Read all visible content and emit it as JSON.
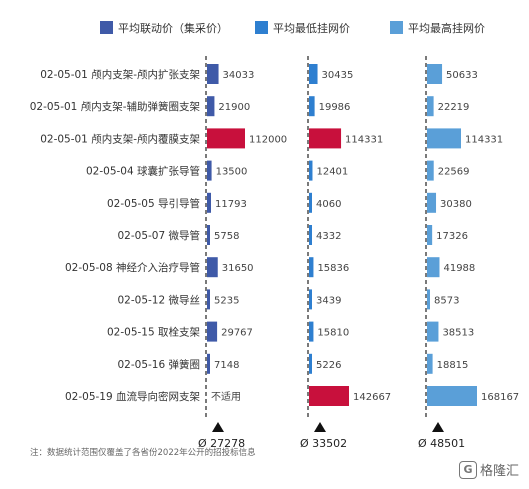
{
  "chart_data": {
    "type": "bar",
    "orientation": "horizontal",
    "legend": [
      {
        "name": "平均联动价（集采价）",
        "color": "#3f5aa8"
      },
      {
        "name": "平均最低挂网价",
        "color": "#2e7fd0"
      },
      {
        "name": "平均最高挂网价",
        "color": "#5a9fd8"
      }
    ],
    "highlight_color": "#c8103c",
    "categories": [
      "02-05-01 颅内支架-颅内扩张支架",
      "02-05-01 颅内支架-辅助弹簧圈支架",
      "02-05-01 颅内支架-颅内覆膜支架",
      "02-05-04 球囊扩张导管",
      "02-05-05 导引导管",
      "02-05-07 微导管",
      "02-05-08 神经介入治疗导管",
      "02-05-12 微导丝",
      "02-05-15 取栓支架",
      "02-05-16 弹簧圈",
      "02-05-19 血流导向密网支架"
    ],
    "series": [
      {
        "name": "平均联动价（集采价）",
        "values": [
          34033,
          21900,
          112000,
          13500,
          11793,
          5758,
          31650,
          5235,
          29767,
          7148,
          null
        ],
        "labels": [
          "34033",
          "21900",
          "112000",
          "13500",
          "11793",
          "5758",
          "31650",
          "5235",
          "29767",
          "7148",
          "不适用"
        ],
        "highlight": [
          false,
          false,
          true,
          false,
          false,
          false,
          false,
          false,
          false,
          false,
          false
        ],
        "average_label": "Ø 27278"
      },
      {
        "name": "平均最低挂网价",
        "values": [
          30435,
          19986,
          114331,
          12401,
          4060,
          4332,
          15836,
          3439,
          15810,
          5226,
          142667
        ],
        "labels": [
          "30435",
          "19986",
          "114331",
          "12401",
          "4060",
          "4332",
          "15836",
          "3439",
          "15810",
          "5226",
          "142667"
        ],
        "highlight": [
          false,
          false,
          true,
          false,
          false,
          false,
          false,
          false,
          false,
          false,
          true
        ],
        "average_label": "Ø 33502"
      },
      {
        "name": "平均最高挂网价",
        "values": [
          50633,
          22219,
          114331,
          22569,
          30380,
          17326,
          41988,
          8573,
          38513,
          18815,
          168167
        ],
        "labels": [
          "50633",
          "22219",
          "114331",
          "22569",
          "30380",
          "17326",
          "41988",
          "8573",
          "38513",
          "18815",
          "168167"
        ],
        "highlight": [
          false,
          false,
          false,
          false,
          false,
          false,
          false,
          false,
          false,
          false,
          false
        ],
        "average_label": "Ø 48501"
      }
    ]
  },
  "footer": {
    "note": "注：数据统计范围仅覆盖了各省份2022年公开的招投标信息",
    "brand_text": "格隆汇",
    "brand_logo_glyph": "G"
  }
}
